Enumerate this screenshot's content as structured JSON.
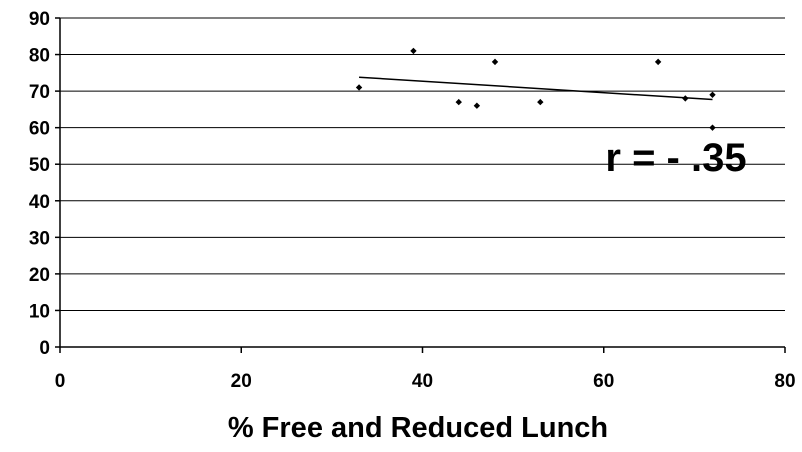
{
  "chart_data": {
    "type": "scatter",
    "title": "",
    "xlabel": "% Free and Reduced Lunch",
    "ylabel": "",
    "xlim": [
      0,
      80
    ],
    "ylim": [
      0,
      90
    ],
    "x_ticks": [
      0,
      20,
      40,
      60,
      80
    ],
    "y_ticks": [
      0,
      10,
      20,
      30,
      40,
      50,
      60,
      70,
      80,
      90
    ],
    "grid": "horizontal",
    "legend": "none",
    "series": [
      {
        "points": [
          {
            "x": 33,
            "y": 71
          },
          {
            "x": 39,
            "y": 81
          },
          {
            "x": 44,
            "y": 67
          },
          {
            "x": 46,
            "y": 66
          },
          {
            "x": 48,
            "y": 78
          },
          {
            "x": 53,
            "y": 67
          },
          {
            "x": 66,
            "y": 78
          },
          {
            "x": 69,
            "y": 68
          },
          {
            "x": 72,
            "y": 69
          },
          {
            "x": 72,
            "y": 60
          }
        ]
      }
    ],
    "trendline": {
      "type": "linear",
      "x_range": [
        33,
        72
      ],
      "start": {
        "x": 33,
        "y": 73.8
      },
      "end": {
        "x": 72,
        "y": 67.7
      }
    },
    "annotation": "r = - .35",
    "colors": {
      "marker": "#000000",
      "trendline": "#000000",
      "gridline": "#000000",
      "axis": "#000000"
    }
  }
}
